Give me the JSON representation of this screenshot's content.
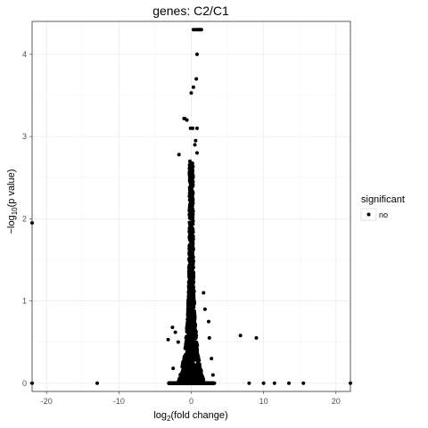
{
  "chart_data": {
    "type": "scatter",
    "title": "genes: C2/C1",
    "xlabel_base": "log",
    "xlabel_sub": "2",
    "xlabel_rest": "(fold change)",
    "ylabel_base": "−log",
    "ylabel_sub": "10",
    "ylabel_rest": "(p value)",
    "xlim": [
      -22,
      22
    ],
    "ylim": [
      -0.1,
      4.4
    ],
    "xticks": [
      -20,
      -10,
      0,
      10,
      20
    ],
    "xtick_labels": [
      "-20",
      "-10",
      "0",
      "10",
      "20"
    ],
    "yticks": [
      0,
      1,
      2,
      3,
      4
    ],
    "ytick_labels": [
      "0",
      "1",
      "2",
      "3",
      "4"
    ],
    "grid": true,
    "legend": {
      "title": "significant",
      "position": "right",
      "entries": [
        "no"
      ]
    },
    "colors": {
      "point": "#000000",
      "panel_border": "#333333",
      "grid_major": "#ebebeb",
      "grid_minor": "#f5f5f5"
    },
    "series": [
      {
        "name": "no",
        "points": [
          [
            -22,
            1.95
          ],
          [
            -22,
            0
          ],
          [
            -13,
            0
          ],
          [
            0.3,
            4.3
          ],
          [
            0.6,
            4.3
          ],
          [
            0.9,
            4.3
          ],
          [
            1.2,
            4.3
          ],
          [
            1.4,
            4.3
          ],
          [
            1.0,
            4.3
          ],
          [
            0.8,
            4.0
          ],
          [
            0.7,
            3.7
          ],
          [
            0.3,
            3.6
          ],
          [
            0.0,
            3.53
          ],
          [
            -0.6,
            3.2
          ],
          [
            -0.9,
            3.22
          ],
          [
            -1.0,
            3.22
          ],
          [
            -0.1,
            3.1
          ],
          [
            0.2,
            3.1
          ],
          [
            0.8,
            3.1
          ],
          [
            0.6,
            2.95
          ],
          [
            0.5,
            2.9
          ],
          [
            -1.7,
            2.78
          ],
          [
            0.8,
            2.8
          ],
          [
            6.8,
            0.58
          ],
          [
            9.0,
            0.55
          ],
          [
            8.0,
            0
          ],
          [
            10.0,
            0
          ],
          [
            11.5,
            0
          ],
          [
            13.5,
            0
          ],
          [
            15.5,
            0
          ],
          [
            22,
            0
          ],
          [
            -2.6,
            0.68
          ],
          [
            -2.2,
            0.62
          ],
          [
            -3.2,
            0.53
          ],
          [
            2.4,
            0.75
          ],
          [
            2.5,
            0.55
          ],
          [
            -1.8,
            0.5
          ],
          [
            2.8,
            0.3
          ],
          [
            3.0,
            0.1
          ],
          [
            3.2,
            0
          ],
          [
            -3.1,
            0
          ],
          [
            -2.5,
            0.18
          ],
          [
            1.9,
            0.9
          ],
          [
            1.7,
            1.1
          ]
        ]
      }
    ]
  }
}
